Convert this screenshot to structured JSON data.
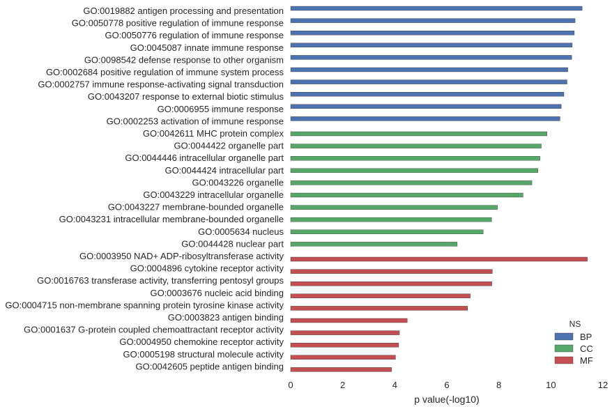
{
  "chart_data": {
    "type": "bar",
    "orientation": "horizontal",
    "xlabel": "p value(-log10)",
    "ylabel": "",
    "xlim": [
      0,
      12
    ],
    "xticks": [
      "0",
      "2",
      "4",
      "6",
      "8",
      "10",
      "12"
    ],
    "grid": false,
    "legend": {
      "title": "NS",
      "placement": "bottom-right",
      "entries": [
        {
          "name": "BP",
          "color": "#4c72b0"
        },
        {
          "name": "CC",
          "color": "#55a868"
        },
        {
          "name": "MF",
          "color": "#c44e52"
        }
      ]
    },
    "categories": [
      "GO:0019882 antigen processing and presentation",
      "GO:0050778 positive regulation of immune response",
      "GO:0050776 regulation of immune response",
      "GO:0045087 innate immune response",
      "GO:0098542 defense response to other organism",
      "GO:0002684 positive regulation of immune system process",
      "GO:0002757 immune response-activating signal transduction",
      "GO:0043207 response to external biotic stimulus",
      "GO:0006955 immune response",
      "GO:0002253 activation of immune response",
      "GO:0042611 MHC protein complex",
      "GO:0044422 organelle part",
      "GO:0044446 intracellular organelle part",
      "GO:0044424 intracellular part",
      "GO:0043226 organelle",
      "GO:0043229 intracellular organelle",
      "GO:0043227 membrane-bounded organelle",
      "GO:0043231 intracellular membrane-bounded organelle",
      "GO:0005634 nucleus",
      "GO:0044428 nuclear part",
      "GO:0003950 NAD+ ADP-ribosyltransferase activity",
      "GO:0004896 cytokine receptor activity",
      "GO:0016763 transferase activity, transferring pentosyl groups",
      "GO:0003676 nucleic acid binding",
      "GO:0004715 non-membrane spanning protein tyrosine kinase activity",
      "GO:0003823 antigen binding",
      "GO:0001637 G-protein coupled chemoattractant receptor activity",
      "GO:0004950 chemokine receptor activity",
      "GO:0005198 structural molecule activity",
      "GO:0042605 peptide antigen binding"
    ],
    "values": [
      11.2,
      10.93,
      10.9,
      10.82,
      10.8,
      10.65,
      10.62,
      10.5,
      10.4,
      10.35,
      9.85,
      9.63,
      9.58,
      9.5,
      9.27,
      8.93,
      7.95,
      7.72,
      7.4,
      6.4,
      11.4,
      7.75,
      7.73,
      6.9,
      6.8,
      4.48,
      4.18,
      4.15,
      4.03,
      3.88
    ],
    "groups": [
      "BP",
      "BP",
      "BP",
      "BP",
      "BP",
      "BP",
      "BP",
      "BP",
      "BP",
      "BP",
      "CC",
      "CC",
      "CC",
      "CC",
      "CC",
      "CC",
      "CC",
      "CC",
      "CC",
      "CC",
      "MF",
      "MF",
      "MF",
      "MF",
      "MF",
      "MF",
      "MF",
      "MF",
      "MF",
      "MF"
    ]
  }
}
